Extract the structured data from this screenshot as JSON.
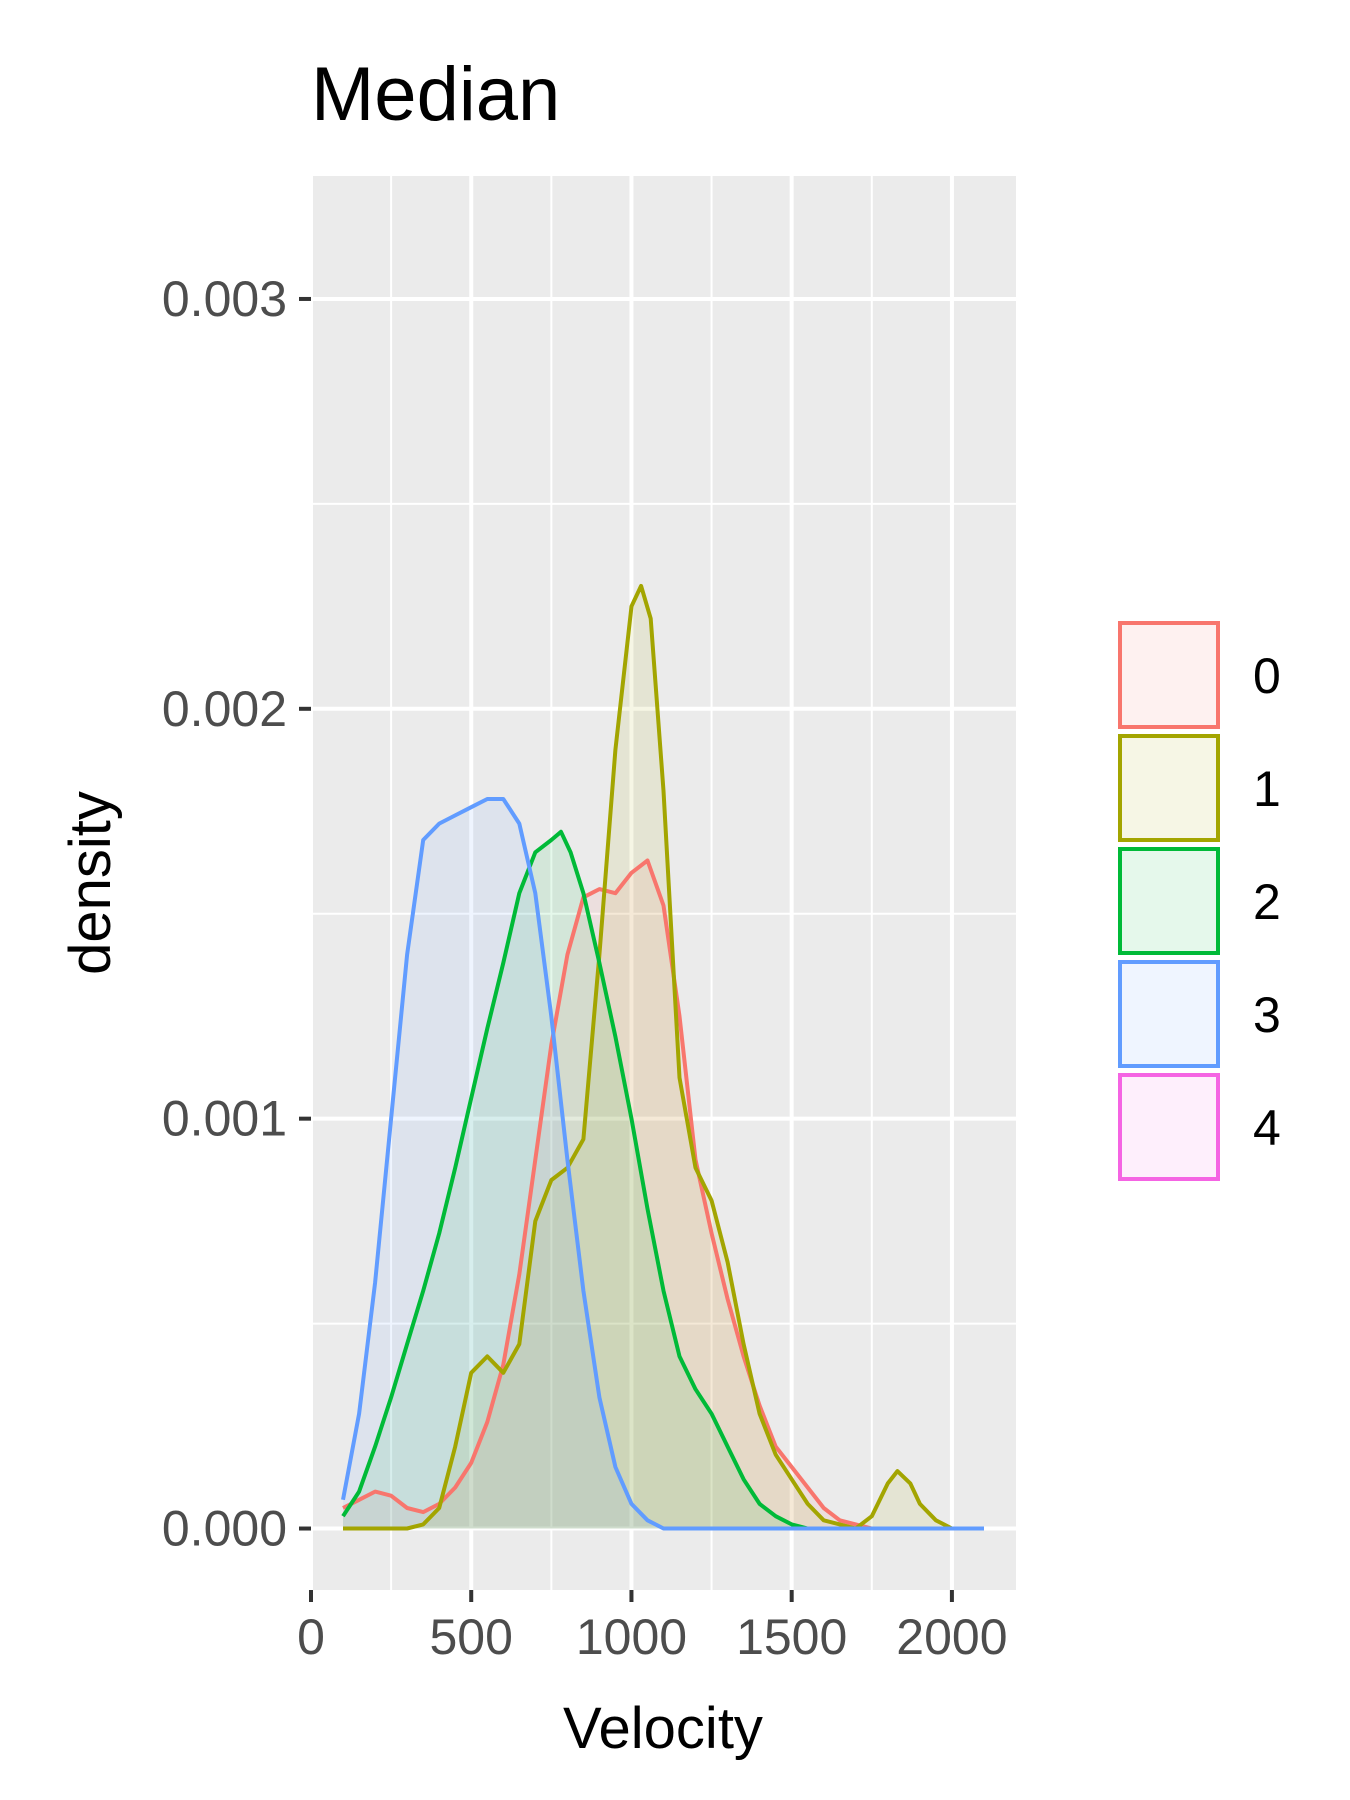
{
  "chart_data": {
    "type": "area",
    "title": "Median",
    "xlabel": "Velocity",
    "ylabel": "density",
    "xlim": [
      0,
      2200
    ],
    "ylim": [
      -0.00015,
      0.0033
    ],
    "x_ticks": [
      0,
      500,
      1000,
      1500,
      2000
    ],
    "x_tick_labels": [
      "0",
      "500",
      "1000",
      "1500",
      "2000"
    ],
    "y_ticks": [
      0,
      0.001,
      0.002,
      0.003
    ],
    "y_tick_labels": [
      "0.000",
      "0.001",
      "0.002",
      "0.003"
    ],
    "grid": true,
    "legend_position": "right",
    "series": [
      {
        "name": "0",
        "color": "#F8766D",
        "x": [
          100,
          150,
          200,
          250,
          300,
          350,
          400,
          450,
          500,
          550,
          600,
          650,
          700,
          750,
          800,
          850,
          900,
          950,
          1000,
          1050,
          1100,
          1150,
          1200,
          1250,
          1300,
          1350,
          1400,
          1450,
          1500,
          1550,
          1600,
          1650,
          1700,
          1750,
          1800,
          1900,
          2000,
          2100
        ],
        "y": [
          5e-05,
          7e-05,
          9e-05,
          8e-05,
          5e-05,
          4e-05,
          6e-05,
          0.0001,
          0.00016,
          0.00026,
          0.0004,
          0.00062,
          0.0009,
          0.00118,
          0.0014,
          0.00154,
          0.00156,
          0.00155,
          0.0016,
          0.00163,
          0.00152,
          0.00125,
          0.0009,
          0.00072,
          0.00056,
          0.00042,
          0.0003,
          0.0002,
          0.00015,
          0.0001,
          5e-05,
          2e-05,
          1e-05,
          0.0,
          0.0,
          0.0,
          0.0,
          0.0
        ]
      },
      {
        "name": "1",
        "color": "#A3A500",
        "x": [
          100,
          200,
          300,
          350,
          400,
          450,
          500,
          550,
          600,
          650,
          700,
          750,
          800,
          850,
          900,
          950,
          1000,
          1030,
          1060,
          1100,
          1150,
          1200,
          1250,
          1300,
          1350,
          1400,
          1450,
          1500,
          1550,
          1600,
          1650,
          1700,
          1750,
          1800,
          1830,
          1870,
          1900,
          1950,
          2000,
          2100
        ],
        "y": [
          0.0,
          0.0,
          0.0,
          1e-05,
          5e-05,
          0.0002,
          0.00038,
          0.00042,
          0.00038,
          0.00045,
          0.00075,
          0.00085,
          0.00088,
          0.00095,
          0.0014,
          0.0019,
          0.00225,
          0.0023,
          0.00222,
          0.0018,
          0.0011,
          0.00088,
          0.0008,
          0.00065,
          0.00045,
          0.00028,
          0.00018,
          0.00012,
          6e-05,
          2e-05,
          1e-05,
          0.0,
          3e-05,
          0.00011,
          0.00014,
          0.00011,
          6e-05,
          2e-05,
          0.0,
          0.0
        ]
      },
      {
        "name": "2",
        "color": "#00BA38",
        "x": [
          100,
          150,
          200,
          250,
          300,
          350,
          400,
          450,
          500,
          550,
          600,
          650,
          700,
          750,
          780,
          810,
          850,
          900,
          950,
          1000,
          1050,
          1100,
          1150,
          1200,
          1250,
          1300,
          1350,
          1400,
          1450,
          1500,
          1550,
          1600,
          1700,
          1800,
          2100
        ],
        "y": [
          3e-05,
          9e-05,
          0.0002,
          0.00032,
          0.00045,
          0.00058,
          0.00072,
          0.00088,
          0.00105,
          0.00122,
          0.00138,
          0.00155,
          0.00165,
          0.00168,
          0.0017,
          0.00165,
          0.00155,
          0.00138,
          0.0012,
          0.001,
          0.00078,
          0.00058,
          0.00042,
          0.00034,
          0.00028,
          0.0002,
          0.00012,
          6e-05,
          3e-05,
          1e-05,
          0.0,
          0.0,
          0.0,
          0.0,
          0.0
        ]
      },
      {
        "name": "3",
        "color": "#619CFF",
        "x": [
          100,
          150,
          200,
          250,
          300,
          350,
          400,
          450,
          500,
          550,
          600,
          650,
          700,
          750,
          800,
          850,
          900,
          950,
          1000,
          1050,
          1100,
          1200,
          1400,
          1600,
          1800,
          2000,
          2100
        ],
        "y": [
          7e-05,
          0.00028,
          0.0006,
          0.001,
          0.0014,
          0.00168,
          0.00172,
          0.00174,
          0.00176,
          0.00178,
          0.00178,
          0.00172,
          0.00155,
          0.00125,
          0.0009,
          0.00058,
          0.00032,
          0.00015,
          6e-05,
          2e-05,
          0.0,
          0.0,
          0.0,
          0.0,
          0.0,
          0.0,
          0.0
        ]
      },
      {
        "name": "4",
        "color": "#F564E3",
        "x": [],
        "y": []
      }
    ]
  }
}
